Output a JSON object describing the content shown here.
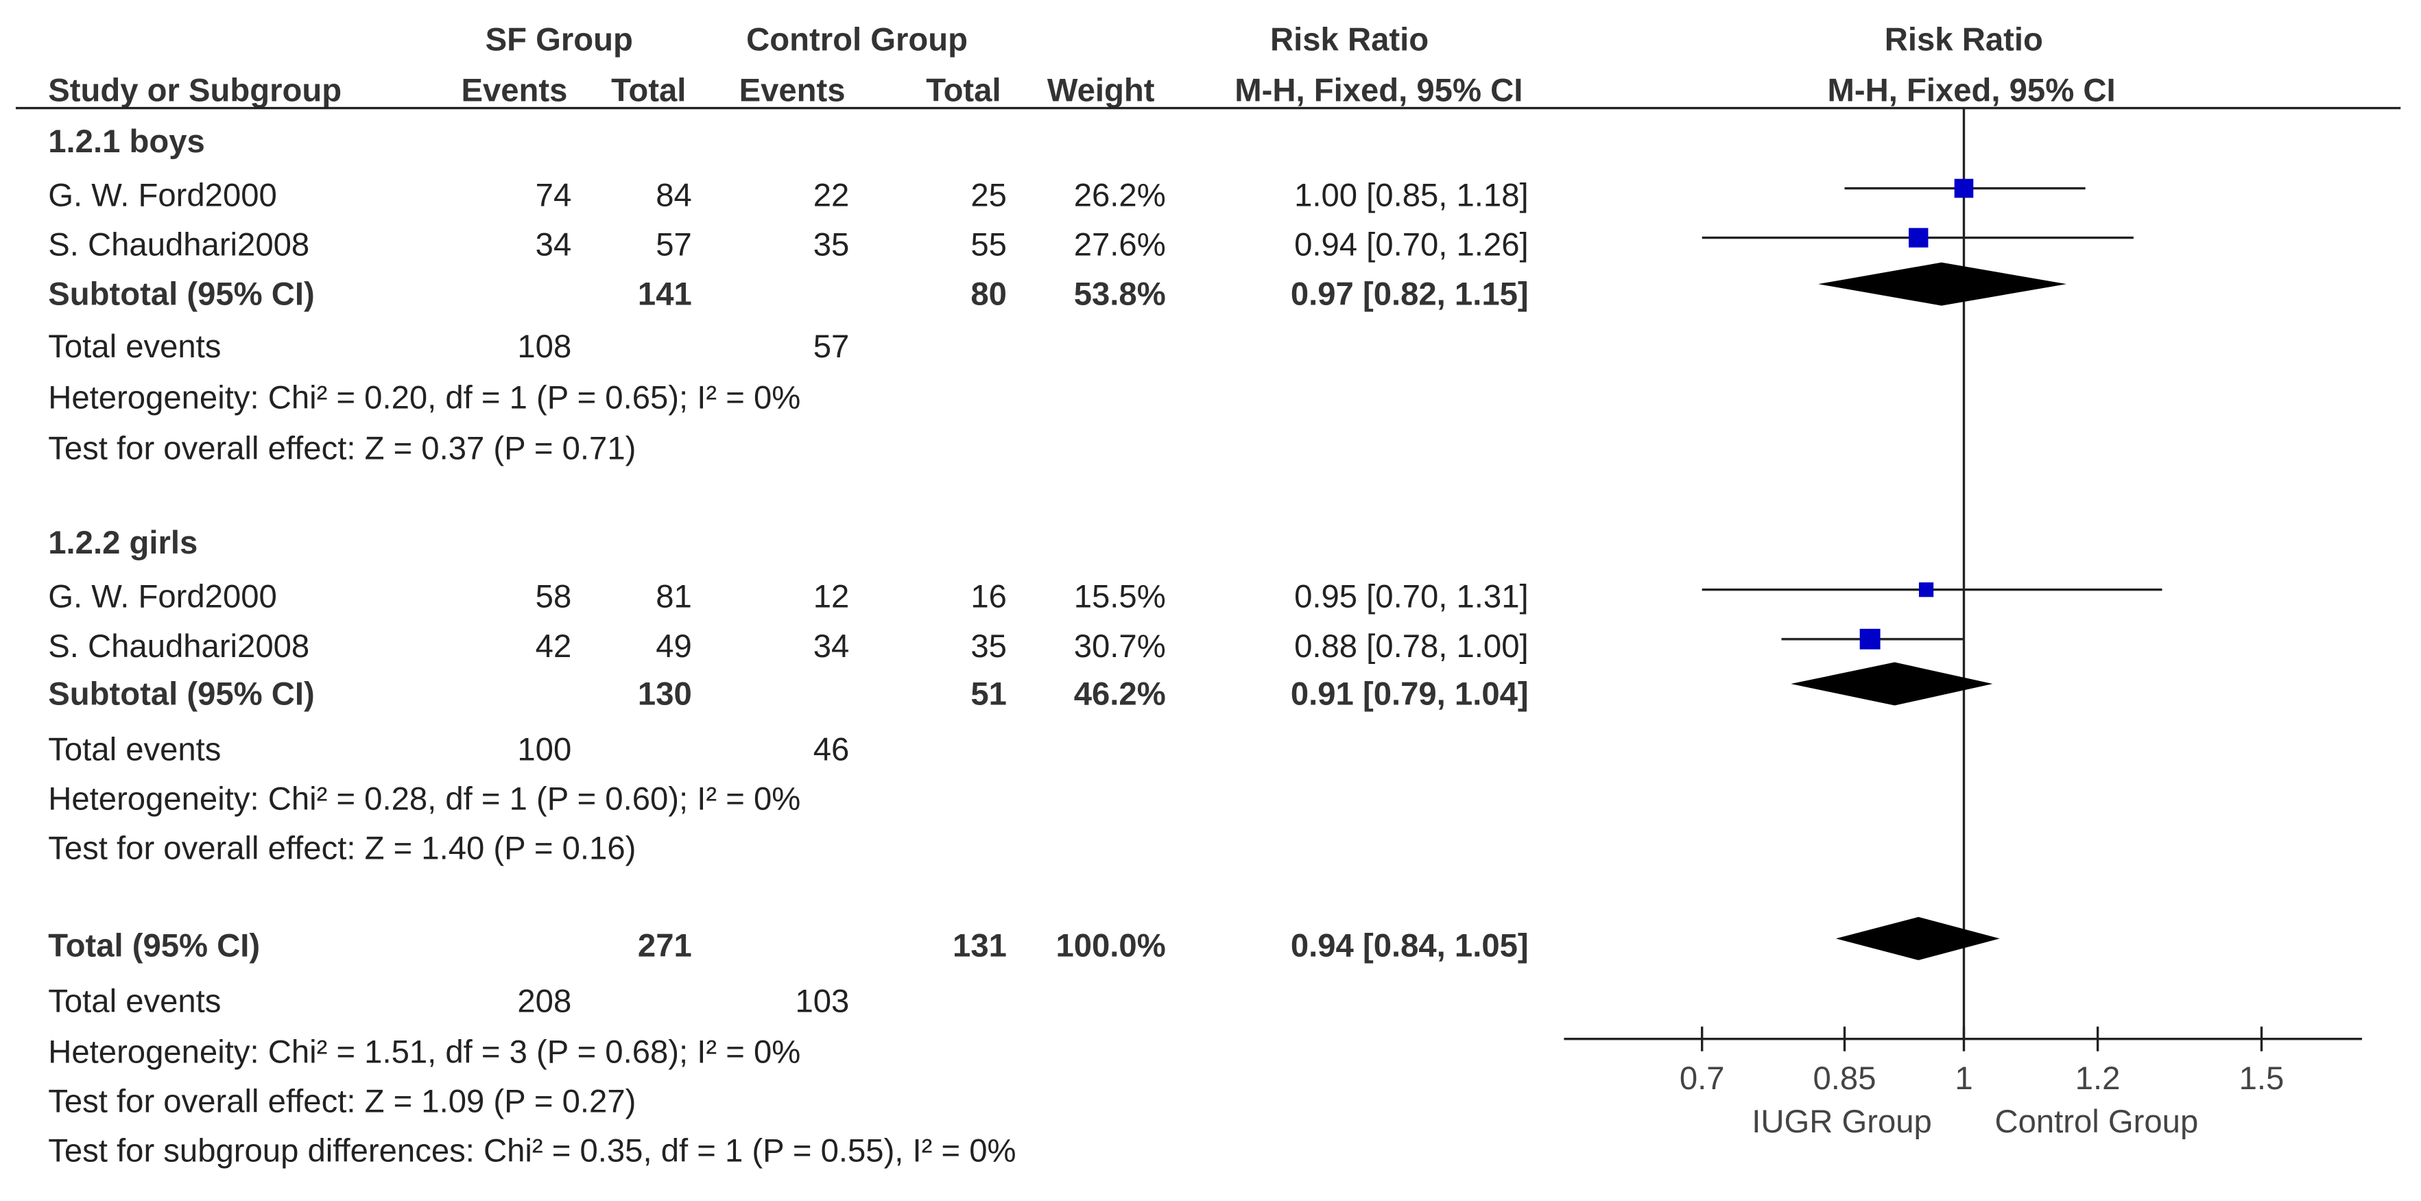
{
  "chart_data": {
    "type": "forest",
    "column_groups": [
      "SF Group",
      "Control Group",
      "Risk Ratio",
      "Risk Ratio"
    ],
    "columns": [
      "Study or Subgroup",
      "Events",
      "Total",
      "Events",
      "Total",
      "Weight",
      "M-H, Fixed, 95% CI",
      "M-H, Fixed, 95% CI"
    ],
    "subgroups": [
      {
        "name": "1.2.1 boys",
        "studies": [
          {
            "name": "G. W. Ford2000",
            "events1": 74,
            "total1": 84,
            "events2": 22,
            "total2": 25,
            "weight": "26.2%",
            "rr": 1.0,
            "ci": [
              0.85,
              1.18
            ],
            "ci_label": "1.00 [0.85, 1.18]"
          },
          {
            "name": "S. Chaudhari2008",
            "events1": 34,
            "total1": 57,
            "events2": 35,
            "total2": 55,
            "weight": "27.6%",
            "rr": 0.94,
            "ci": [
              0.7,
              1.26
            ],
            "ci_label": "0.94 [0.70, 1.26]"
          }
        ],
        "subtotal": {
          "label": "Subtotal (95% CI)",
          "total1": 141,
          "total2": 80,
          "weight": "53.8%",
          "rr": 0.97,
          "ci": [
            0.82,
            1.15
          ],
          "ci_label": "0.97 [0.82, 1.15]"
        },
        "total_events": {
          "label": "Total events",
          "events1": 108,
          "events2": 57
        },
        "heterogeneity": "Heterogeneity: Chi² = 0.20, df = 1 (P = 0.65); I² = 0%",
        "overall": "Test for overall effect: Z = 0.37 (P = 0.71)"
      },
      {
        "name": "1.2.2 girls",
        "studies": [
          {
            "name": "G. W. Ford2000",
            "events1": 58,
            "total1": 81,
            "events2": 12,
            "total2": 16,
            "weight": "15.5%",
            "rr": 0.95,
            "ci": [
              0.7,
              1.31
            ],
            "ci_label": "0.95 [0.70, 1.31]"
          },
          {
            "name": "S. Chaudhari2008",
            "events1": 42,
            "total1": 49,
            "events2": 34,
            "total2": 35,
            "weight": "30.7%",
            "rr": 0.88,
            "ci": [
              0.78,
              1.0
            ],
            "ci_label": "0.88 [0.78, 1.00]"
          }
        ],
        "subtotal": {
          "label": "Subtotal (95% CI)",
          "total1": 130,
          "total2": 51,
          "weight": "46.2%",
          "rr": 0.91,
          "ci": [
            0.79,
            1.04
          ],
          "ci_label": "0.91 [0.79, 1.04]"
        },
        "total_events": {
          "label": "Total events",
          "events1": 100,
          "events2": 46
        },
        "heterogeneity": "Heterogeneity: Chi² = 0.28, df = 1 (P = 0.60); I² = 0%",
        "overall": "Test for overall effect: Z = 1.40 (P = 0.16)"
      }
    ],
    "total": {
      "label": "Total (95% CI)",
      "total1": 271,
      "total2": 131,
      "weight": "100.0%",
      "rr": 0.94,
      "ci": [
        0.84,
        1.05
      ],
      "ci_label": "0.94 [0.84, 1.05]"
    },
    "total_events": {
      "label": "Total events",
      "events1": 208,
      "events2": 103
    },
    "heterogeneity": "Heterogeneity: Chi² = 1.51, df = 3 (P = 0.68); I² = 0%",
    "overall": "Test for overall effect: Z = 1.09 (P = 0.27)",
    "subgroup_differences": "Test for subgroup differences: Chi² = 0.35, df = 1 (P = 0.55), I² = 0%",
    "xlim": [
      0.58,
      1.72
    ],
    "xticks": [
      0.7,
      0.85,
      1,
      1.2,
      1.5
    ],
    "log_scale": true,
    "x_labels": [
      "IUGR Group",
      "Control Group"
    ],
    "study_color": "#0000c8",
    "diamond_color": "#000000"
  }
}
